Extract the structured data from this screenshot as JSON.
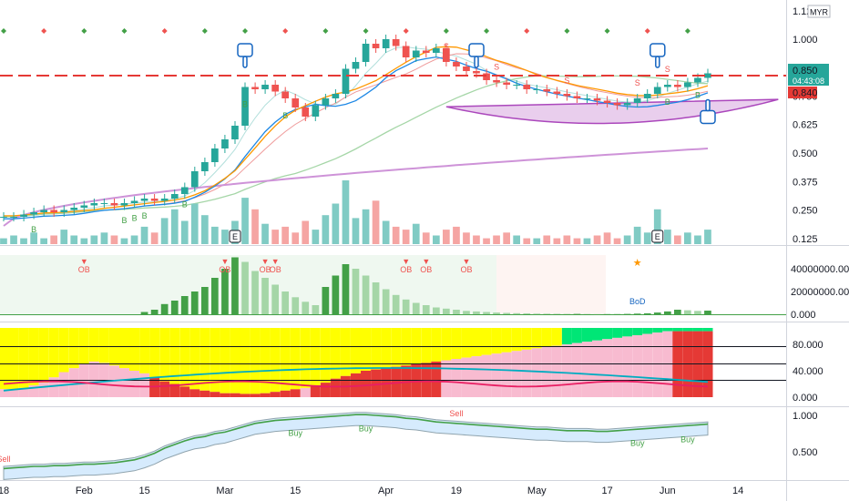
{
  "header": {
    "currency": "MYR"
  },
  "price_axis": {
    "ticks": [
      "1.125",
      "1.000",
      "0.875",
      "0.750",
      "0.625",
      "0.500",
      "0.375",
      "0.250",
      "0.125"
    ],
    "last_price": "0.850",
    "countdown": "04:43:08",
    "ref_price": "0.840"
  },
  "volume_axis": {
    "ticks": [
      "40000000.000",
      "20000000.000",
      "0.000"
    ]
  },
  "strength_axis": {
    "ticks": [
      "80.000",
      "40.000",
      "0.000"
    ]
  },
  "bottom_axis": {
    "ticks": [
      "1.000",
      "0.500"
    ]
  },
  "time_axis": {
    "labels": [
      "18",
      "Feb",
      "15",
      "Mar",
      "15",
      "Apr",
      "19",
      "May",
      "17",
      "Jun",
      "14"
    ]
  },
  "event_markers": [
    "E",
    "E"
  ],
  "annotations": {
    "main_signals": [
      "S",
      "S",
      "S",
      "S",
      "S",
      "B",
      "B",
      "B",
      "B",
      "B",
      "B",
      "B",
      "B",
      "B"
    ],
    "ob_labels": [
      "OB",
      "OB",
      "OB",
      "OB",
      "OB",
      "OB",
      "OB"
    ],
    "bod_label": "BoD",
    "sell_labels": [
      "Sell",
      "Sell"
    ],
    "buy_labels": [
      "Buy",
      "Buy",
      "Buy",
      "Buy"
    ]
  },
  "chart_data": [
    {
      "type": "candlestick",
      "y_ticks": [
        1.125,
        1.0,
        0.875,
        0.75,
        0.625,
        0.5,
        0.375,
        0.25,
        0.125
      ],
      "ylim": [
        0.1,
        1.14
      ],
      "x_labels": [
        "18",
        "Feb",
        "15",
        "Mar",
        "15",
        "Apr",
        "19",
        "May",
        "17",
        "Jun",
        "14"
      ],
      "last_price": 0.85,
      "reference_line": 0.84,
      "close_series": [
        0.22,
        0.22,
        0.23,
        0.24,
        0.25,
        0.24,
        0.25,
        0.26,
        0.27,
        0.28,
        0.28,
        0.27,
        0.28,
        0.29,
        0.3,
        0.29,
        0.3,
        0.32,
        0.35,
        0.42,
        0.46,
        0.52,
        0.56,
        0.62,
        0.79,
        0.78,
        0.8,
        0.77,
        0.74,
        0.7,
        0.66,
        0.71,
        0.74,
        0.76,
        0.87,
        0.9,
        0.98,
        0.96,
        1.0,
        0.97,
        0.92,
        0.95,
        0.94,
        0.96,
        0.9,
        0.88,
        0.86,
        0.85,
        0.82,
        0.81,
        0.8,
        0.8,
        0.78,
        0.78,
        0.77,
        0.76,
        0.75,
        0.74,
        0.74,
        0.73,
        0.72,
        0.71,
        0.72,
        0.74,
        0.76,
        0.79,
        0.8,
        0.79,
        0.81,
        0.83,
        0.85
      ],
      "volume": [
        2,
        3,
        2,
        4,
        2,
        3,
        5,
        3,
        2,
        3,
        4,
        3,
        2,
        3,
        6,
        4,
        9,
        12,
        8,
        14,
        10,
        6,
        5,
        8,
        16,
        12,
        7,
        5,
        6,
        4,
        8,
        5,
        10,
        14,
        22,
        9,
        12,
        15,
        8,
        6,
        5,
        7,
        4,
        3,
        5,
        6,
        4,
        3,
        2,
        3,
        4,
        3,
        2,
        2,
        3,
        2,
        3,
        2,
        2,
        3,
        4,
        2,
        3,
        6,
        4,
        12,
        5,
        3,
        4,
        3,
        5
      ]
    },
    {
      "type": "bar",
      "y_ticks": [
        40000000,
        20000000,
        0
      ],
      "ylim": [
        0,
        52000000
      ],
      "values": [
        0,
        0,
        0,
        0,
        0,
        0,
        0,
        0,
        0,
        0,
        0,
        0,
        0,
        0,
        2000000,
        4000000,
        9000000,
        12000000,
        16000000,
        20000000,
        24000000,
        32000000,
        40000000,
        50000000,
        46000000,
        38000000,
        32000000,
        26000000,
        20000000,
        15000000,
        11000000,
        8000000,
        24000000,
        34000000,
        44000000,
        40000000,
        34000000,
        28000000,
        22000000,
        17000000,
        13000000,
        10000000,
        8000000,
        6000000,
        5000000,
        4000000,
        3000000,
        2500000,
        2000000,
        1500000,
        1200000,
        1000000,
        800000,
        600000,
        500000,
        400000,
        300000,
        300000,
        250000,
        200000,
        200000,
        200000,
        300000,
        600000,
        800000,
        1500000,
        2500000,
        4000000,
        3500000,
        3000000,
        3200000
      ]
    },
    {
      "type": "bar",
      "y_ticks": [
        80,
        40,
        0
      ],
      "ylim": [
        0,
        105
      ],
      "values": [
        12,
        12,
        14,
        18,
        22,
        30,
        38,
        44,
        50,
        54,
        52,
        48,
        44,
        40,
        36,
        30,
        24,
        20,
        16,
        12,
        10,
        8,
        6,
        6,
        5,
        5,
        6,
        8,
        10,
        12,
        14,
        18,
        22,
        28,
        32,
        36,
        40,
        42,
        44,
        46,
        48,
        50,
        52,
        54,
        56,
        58,
        60,
        62,
        64,
        66,
        68,
        70,
        72,
        74,
        76,
        78,
        80,
        82,
        84,
        86,
        88,
        90,
        92,
        94,
        96,
        98,
        100,
        100,
        100,
        100,
        100
      ]
    },
    {
      "type": "line",
      "y_ticks": [
        1.0,
        0.5
      ],
      "ylim": [
        0.2,
        1.05
      ],
      "values": [
        0.24,
        0.25,
        0.26,
        0.27,
        0.27,
        0.28,
        0.28,
        0.29,
        0.3,
        0.3,
        0.31,
        0.32,
        0.34,
        0.36,
        0.4,
        0.45,
        0.52,
        0.57,
        0.62,
        0.66,
        0.68,
        0.72,
        0.74,
        0.78,
        0.82,
        0.86,
        0.88,
        0.9,
        0.91,
        0.92,
        0.93,
        0.94,
        0.95,
        0.96,
        0.97,
        0.98,
        0.98,
        0.97,
        0.96,
        0.95,
        0.93,
        0.92,
        0.9,
        0.88,
        0.87,
        0.86,
        0.85,
        0.84,
        0.83,
        0.82,
        0.81,
        0.8,
        0.79,
        0.78,
        0.78,
        0.77,
        0.76,
        0.76,
        0.76,
        0.75,
        0.75,
        0.76,
        0.77,
        0.78,
        0.79,
        0.8,
        0.81,
        0.82,
        0.83,
        0.84,
        0.85
      ]
    }
  ],
  "colors": {
    "bull": "#26a69a",
    "bear": "#ef5350",
    "ref_line": "#e53935",
    "cup_fill": "#ce93d8",
    "panel_bg": "#e8f5e9",
    "yellow": "#ffff00",
    "green": "#00e676"
  }
}
